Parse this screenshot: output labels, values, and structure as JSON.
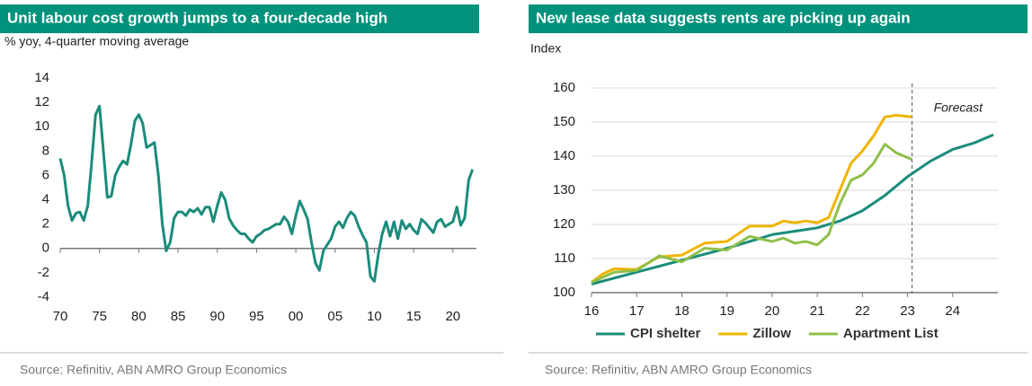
{
  "chart_data": [
    {
      "type": "line",
      "title": "Unit labour cost growth jumps to a four-decade high",
      "subtitle": "% yoy, 4-quarter moving average",
      "source": "Source: Refinitiv, ABN AMRO Group Economics",
      "color": "#1b8c7b",
      "x": [
        1970,
        1970.5,
        1971,
        1971.5,
        1972,
        1972.5,
        1973,
        1973.5,
        1974,
        1974.5,
        1975,
        1975.5,
        1976,
        1976.5,
        1977,
        1977.5,
        1978,
        1978.5,
        1979,
        1979.5,
        1980,
        1980.5,
        1981,
        1981.5,
        1982,
        1982.5,
        1983,
        1983.5,
        1984,
        1984.5,
        1985,
        1985.5,
        1986,
        1986.5,
        1987,
        1987.5,
        1988,
        1988.5,
        1989,
        1989.5,
        1990,
        1990.5,
        1991,
        1991.5,
        1992,
        1992.5,
        1993,
        1993.5,
        1994,
        1994.5,
        1995,
        1995.5,
        1996,
        1996.5,
        1997,
        1997.5,
        1998,
        1998.5,
        1999,
        1999.5,
        2000,
        2000.5,
        2001,
        2001.5,
        2002,
        2002.5,
        2003,
        2003.5,
        2004,
        2004.5,
        2005,
        2005.5,
        2006,
        2006.5,
        2007,
        2007.5,
        2008,
        2008.5,
        2009,
        2009.5,
        2010,
        2010.5,
        2011,
        2011.5,
        2012,
        2012.5,
        2013,
        2013.5,
        2014,
        2014.5,
        2015,
        2015.5,
        2016,
        2016.5,
        2017,
        2017.5,
        2018,
        2018.5,
        2019,
        2019.5,
        2020,
        2020.5,
        2021,
        2021.5,
        2022,
        2022.5
      ],
      "values": [
        7.4,
        6,
        3.5,
        2.3,
        2.9,
        3,
        2.3,
        3.5,
        7,
        11,
        11.7,
        8,
        4.2,
        4.3,
        6,
        6.7,
        7.2,
        6.9,
        8.5,
        10.5,
        11,
        10.3,
        8.3,
        8.5,
        8.7,
        6,
        2,
        -0.2,
        0.5,
        2.5,
        3,
        3,
        2.7,
        3.2,
        3,
        3.3,
        2.8,
        3.4,
        3.4,
        2.2,
        3.5,
        4.6,
        4,
        2.5,
        1.9,
        1.5,
        1.2,
        1.2,
        0.8,
        0.5,
        1,
        1.2,
        1.5,
        1.6,
        1.8,
        2,
        2,
        2.6,
        2.2,
        1.2,
        2.7,
        3.9,
        3.2,
        2.4,
        0.5,
        -1.2,
        -1.8,
        -0.2,
        0.3,
        0.8,
        1.8,
        2.2,
        1.7,
        2.5,
        3,
        2.7,
        1.8,
        1.1,
        0.5,
        -2.3,
        -2.7,
        -0.5,
        1.2,
        2.2,
        1,
        2.2,
        0.8,
        2.3,
        1.6,
        2,
        1.5,
        1.2,
        2.4,
        2.1,
        1.7,
        1.3,
        2.2,
        2.4,
        1.8,
        2,
        2.2,
        3.4,
        1.9,
        2.5,
        5.6,
        6.5
      ],
      "xlim": [
        1970,
        2023
      ],
      "xticks": [
        {
          "value": 1970,
          "label": "70"
        },
        {
          "value": 1975,
          "label": "75"
        },
        {
          "value": 1980,
          "label": "80"
        },
        {
          "value": 1985,
          "label": "85"
        },
        {
          "value": 1990,
          "label": "90"
        },
        {
          "value": 1995,
          "label": "95"
        },
        {
          "value": 2000,
          "label": "00"
        },
        {
          "value": 2005,
          "label": "05"
        },
        {
          "value": 2010,
          "label": "10"
        },
        {
          "value": 2015,
          "label": "15"
        },
        {
          "value": 2020,
          "label": "20"
        }
      ],
      "ylim": [
        -4,
        14
      ],
      "yticks": [
        -4,
        -2,
        0,
        2,
        4,
        6,
        8,
        10,
        12,
        14
      ],
      "grid": false
    },
    {
      "type": "line",
      "title": "New lease data suggests rents are picking up again",
      "y_label": "Index",
      "source": "Source: Refinitiv, ABN AMRO Group Economics",
      "annotation": "Forecast",
      "forecast_x": 2023.1,
      "xlim": [
        2016,
        2025
      ],
      "xticks": [
        {
          "value": 2016,
          "label": "16"
        },
        {
          "value": 2017,
          "label": "17"
        },
        {
          "value": 2018,
          "label": "18"
        },
        {
          "value": 2019,
          "label": "19"
        },
        {
          "value": 2020,
          "label": "20"
        },
        {
          "value": 2021,
          "label": "21"
        },
        {
          "value": 2022,
          "label": "22"
        },
        {
          "value": 2023,
          "label": "23"
        },
        {
          "value": 2024,
          "label": "24"
        }
      ],
      "ylim": [
        100,
        160
      ],
      "yticks": [
        100,
        110,
        120,
        130,
        140,
        150,
        160
      ],
      "grid": true,
      "series": [
        {
          "name": "CPI shelter",
          "color": "#1b8c7b",
          "x": [
            2016,
            2017,
            2018,
            2019,
            2020,
            2021,
            2021.5,
            2022,
            2022.5,
            2023,
            2023.5,
            2024,
            2024.5,
            2024.9
          ],
          "values": [
            102.5,
            106,
            109.5,
            113,
            117,
            119,
            121,
            124,
            128.5,
            134,
            138.5,
            142,
            144,
            146.3
          ]
        },
        {
          "name": "Zillow",
          "color": "#f0b400",
          "x": [
            2016,
            2016.25,
            2016.5,
            2017,
            2017.5,
            2018,
            2018.5,
            2019,
            2019.5,
            2020,
            2020.25,
            2020.5,
            2020.75,
            2021,
            2021.25,
            2021.5,
            2021.75,
            2022,
            2022.25,
            2022.5,
            2022.75,
            2023.1
          ],
          "values": [
            103,
            105.5,
            107,
            106.8,
            110.5,
            111,
            114.5,
            115,
            119.5,
            119.5,
            121,
            120.5,
            121,
            120.5,
            122,
            130,
            138,
            141.5,
            146,
            151.5,
            152,
            151.5
          ]
        },
        {
          "name": "Apartment List",
          "color": "#8fc04a",
          "x": [
            2016,
            2016.5,
            2017,
            2017.5,
            2018,
            2018.5,
            2019,
            2019.5,
            2020,
            2020.25,
            2020.5,
            2020.75,
            2021,
            2021.25,
            2021.5,
            2021.75,
            2022,
            2022.25,
            2022.5,
            2022.75,
            2023.1
          ],
          "values": [
            103,
            106,
            106.5,
            110.8,
            109,
            113,
            112.5,
            116.5,
            115,
            116,
            114.5,
            115,
            114,
            117,
            126,
            133,
            134.5,
            138,
            143.5,
            141,
            139
          ]
        }
      ]
    }
  ]
}
